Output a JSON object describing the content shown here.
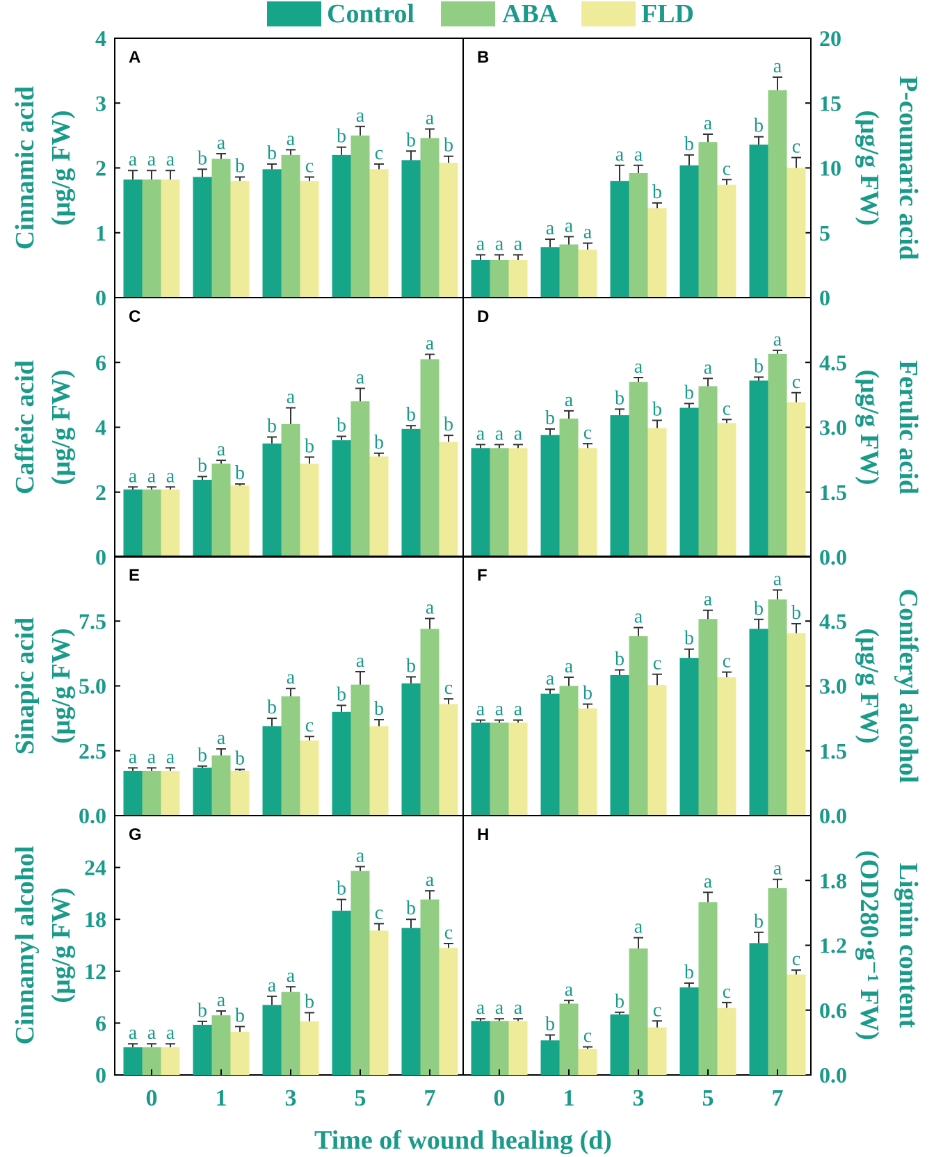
{
  "colors": {
    "control": "#17a589",
    "aba": "#92cd84",
    "fld": "#eeec9a",
    "axis_text": "#1a9a8a",
    "frame": "#000000"
  },
  "legend": {
    "items": [
      {
        "key": "control",
        "label": "Control"
      },
      {
        "key": "aba",
        "label": "ABA"
      },
      {
        "key": "fld",
        "label": "FLD"
      }
    ]
  },
  "x_axis_title": "Time of wound healing (d)",
  "chart_data": [
    {
      "panel": "A",
      "type": "bar",
      "y_axis_side": "left",
      "categories": [
        "0",
        "1",
        "3",
        "5",
        "7"
      ],
      "ylim": [
        0,
        4
      ],
      "yticks": [
        "0",
        "1",
        "2",
        "3",
        "4"
      ],
      "ylabel_line1": "Cinnamic acid",
      "ylabel_line2": "(μg/g FW)",
      "series": [
        {
          "name": "Control",
          "values": [
            1.82,
            1.86,
            1.98,
            2.2,
            2.12
          ],
          "errors": [
            0.14,
            0.12,
            0.08,
            0.12,
            0.14
          ],
          "letters": [
            "a",
            "b",
            "b",
            "b",
            "b"
          ]
        },
        {
          "name": "ABA",
          "values": [
            1.82,
            2.14,
            2.2,
            2.5,
            2.46
          ],
          "errors": [
            0.14,
            0.08,
            0.08,
            0.14,
            0.14
          ],
          "letters": [
            "a",
            "a",
            "a",
            "a",
            "a"
          ]
        },
        {
          "name": "FLD",
          "values": [
            1.82,
            1.8,
            1.8,
            1.98,
            2.08
          ],
          "errors": [
            0.14,
            0.06,
            0.06,
            0.08,
            0.1
          ],
          "letters": [
            "a",
            "b",
            "c",
            "c",
            "b"
          ]
        }
      ]
    },
    {
      "panel": "B",
      "type": "bar",
      "y_axis_side": "right",
      "categories": [
        "0",
        "1",
        "3",
        "5",
        "7"
      ],
      "ylim": [
        0,
        20
      ],
      "yticks": [
        "0",
        "5",
        "10",
        "15",
        "20"
      ],
      "ylabel_line1": "P-coumaric acid",
      "ylabel_line2": "(μg/g FW)",
      "series": [
        {
          "name": "Control",
          "values": [
            2.9,
            3.9,
            9.0,
            10.2,
            11.8
          ],
          "errors": [
            0.4,
            0.6,
            1.2,
            0.8,
            0.6
          ],
          "letters": [
            "a",
            "a",
            "a",
            "b",
            "b"
          ]
        },
        {
          "name": "ABA",
          "values": [
            2.9,
            4.1,
            9.6,
            12.0,
            16.0
          ],
          "errors": [
            0.4,
            0.6,
            0.6,
            0.6,
            1.0
          ],
          "letters": [
            "a",
            "a",
            "a",
            "a",
            "a"
          ]
        },
        {
          "name": "FLD",
          "values": [
            2.9,
            3.7,
            6.9,
            8.7,
            10.0
          ],
          "errors": [
            0.4,
            0.5,
            0.4,
            0.4,
            0.8
          ],
          "letters": [
            "a",
            "a",
            "b",
            "c",
            "c"
          ]
        }
      ]
    },
    {
      "panel": "C",
      "type": "bar",
      "y_axis_side": "left",
      "categories": [
        "0",
        "1",
        "3",
        "5",
        "7"
      ],
      "ylim": [
        0,
        8
      ],
      "yticks": [
        "0",
        "2",
        "4",
        "6"
      ],
      "ylabel_line1": "Caffeic acid",
      "ylabel_line2": "(μg/g FW)",
      "series": [
        {
          "name": "Control",
          "values": [
            2.08,
            2.38,
            3.5,
            3.6,
            3.95
          ],
          "errors": [
            0.08,
            0.1,
            0.2,
            0.12,
            0.1
          ],
          "letters": [
            "a",
            "b",
            "b",
            "b",
            "b"
          ]
        },
        {
          "name": "ABA",
          "values": [
            2.08,
            2.88,
            4.1,
            4.8,
            6.1
          ],
          "errors": [
            0.08,
            0.1,
            0.5,
            0.4,
            0.15
          ],
          "letters": [
            "a",
            "a",
            "a",
            "a",
            "a"
          ]
        },
        {
          "name": "FLD",
          "values": [
            2.08,
            2.2,
            2.88,
            3.1,
            3.55
          ],
          "errors": [
            0.08,
            0.05,
            0.2,
            0.1,
            0.2
          ],
          "letters": [
            "a",
            "b",
            "b",
            "b",
            "b"
          ]
        }
      ]
    },
    {
      "panel": "D",
      "type": "bar",
      "y_axis_side": "right",
      "categories": [
        "0",
        "1",
        "3",
        "5",
        "7"
      ],
      "ylim": [
        0,
        6
      ],
      "yticks": [
        "0.0",
        "1.5",
        "3.0",
        "4.5"
      ],
      "ylabel_line1": "Ferulic  acid",
      "ylabel_line2": "(μg/g FW)",
      "series": [
        {
          "name": "Control",
          "values": [
            2.52,
            2.82,
            3.28,
            3.45,
            4.08
          ],
          "errors": [
            0.08,
            0.14,
            0.14,
            0.1,
            0.08
          ],
          "letters": [
            "a",
            "b",
            "b",
            "b",
            "b"
          ]
        },
        {
          "name": "ABA",
          "values": [
            2.52,
            3.2,
            4.05,
            3.95,
            4.7
          ],
          "errors": [
            0.08,
            0.18,
            0.1,
            0.18,
            0.08
          ],
          "letters": [
            "a",
            "a",
            "a",
            "a",
            "a"
          ]
        },
        {
          "name": "FLD",
          "values": [
            2.52,
            2.52,
            2.98,
            3.1,
            3.58
          ],
          "errors": [
            0.08,
            0.1,
            0.18,
            0.08,
            0.22
          ],
          "letters": [
            "a",
            "c",
            "b",
            "c",
            "c"
          ]
        }
      ]
    },
    {
      "panel": "E",
      "type": "bar",
      "y_axis_side": "left",
      "categories": [
        "0",
        "1",
        "3",
        "5",
        "7"
      ],
      "ylim": [
        0,
        10
      ],
      "yticks": [
        "0.0",
        "2.5",
        "5.0",
        "7.5"
      ],
      "ylabel_line1": "Sinapic acid",
      "ylabel_line2": "(μg/g FW)",
      "series": [
        {
          "name": "Control",
          "values": [
            1.72,
            1.85,
            3.45,
            4.0,
            5.1
          ],
          "errors": [
            0.12,
            0.06,
            0.3,
            0.25,
            0.25
          ],
          "letters": [
            "a",
            "b",
            "b",
            "b",
            "b"
          ]
        },
        {
          "name": "ABA",
          "values": [
            1.72,
            2.32,
            4.6,
            5.05,
            7.2
          ],
          "errors": [
            0.12,
            0.25,
            0.3,
            0.5,
            0.4
          ],
          "letters": [
            "a",
            "a",
            "a",
            "a",
            "a"
          ]
        },
        {
          "name": "FLD",
          "values": [
            1.72,
            1.72,
            2.9,
            3.45,
            4.3
          ],
          "errors": [
            0.12,
            0.06,
            0.15,
            0.25,
            0.2
          ],
          "letters": [
            "a",
            "b",
            "c",
            "b",
            "c"
          ]
        }
      ]
    },
    {
      "panel": "F",
      "type": "bar",
      "y_axis_side": "right",
      "categories": [
        "0",
        "1",
        "3",
        "5",
        "7"
      ],
      "ylim": [
        0,
        6
      ],
      "yticks": [
        "0.0",
        "1.5",
        "3.0",
        "4.5"
      ],
      "ylabel_line1": "Coniferyl alcohol",
      "ylabel_line2": "(μg/g FW)",
      "series": [
        {
          "name": "Control",
          "values": [
            2.15,
            2.82,
            3.25,
            3.65,
            4.32
          ],
          "errors": [
            0.06,
            0.1,
            0.12,
            0.2,
            0.22
          ],
          "letters": [
            "a",
            "a",
            "b",
            "b",
            "b"
          ]
        },
        {
          "name": "ABA",
          "values": [
            2.15,
            3.0,
            4.15,
            4.55,
            5.0
          ],
          "errors": [
            0.06,
            0.2,
            0.2,
            0.2,
            0.22
          ],
          "letters": [
            "a",
            "a",
            "a",
            "a",
            "a"
          ]
        },
        {
          "name": "FLD",
          "values": [
            2.15,
            2.48,
            3.02,
            3.2,
            4.22
          ],
          "errors": [
            0.06,
            0.1,
            0.25,
            0.12,
            0.22
          ],
          "letters": [
            "a",
            "b",
            "c",
            "c",
            "b"
          ]
        }
      ]
    },
    {
      "panel": "G",
      "type": "bar",
      "y_axis_side": "left",
      "categories": [
        "0",
        "1",
        "3",
        "5",
        "7"
      ],
      "ylim": [
        0,
        30
      ],
      "yticks": [
        "0",
        "6",
        "12",
        "18",
        "24"
      ],
      "ylabel_line1": "Cinnamyl alcohol",
      "ylabel_line2": "(μg/g FW)",
      "series": [
        {
          "name": "Control",
          "values": [
            3.2,
            5.8,
            8.1,
            19.0,
            17.0
          ],
          "errors": [
            0.4,
            0.4,
            1.0,
            1.3,
            1.0
          ],
          "letters": [
            "a",
            "b",
            "a",
            "b",
            "b"
          ]
        },
        {
          "name": "ABA",
          "values": [
            3.2,
            6.9,
            9.6,
            23.6,
            20.3
          ],
          "errors": [
            0.4,
            0.5,
            0.6,
            0.5,
            1.0
          ],
          "letters": [
            "a",
            "a",
            "a",
            "a",
            "a"
          ]
        },
        {
          "name": "FLD",
          "values": [
            3.2,
            5.0,
            6.2,
            16.7,
            14.7
          ],
          "errors": [
            0.4,
            0.6,
            1.0,
            0.8,
            0.5
          ],
          "letters": [
            "a",
            "b",
            "b",
            "c",
            "c"
          ]
        }
      ]
    },
    {
      "panel": "H",
      "type": "bar",
      "y_axis_side": "right",
      "categories": [
        "0",
        "1",
        "3",
        "5",
        "7"
      ],
      "ylim": [
        0,
        2.4
      ],
      "yticks": [
        "0.0",
        "0.6",
        "1.2",
        "1.8"
      ],
      "ylabel_line1": "Lignin content",
      "ylabel_line2": "(OD280·g⁻¹ FW)",
      "series": [
        {
          "name": "Control",
          "values": [
            0.5,
            0.32,
            0.56,
            0.81,
            1.22
          ],
          "errors": [
            0.02,
            0.05,
            0.02,
            0.04,
            0.1
          ],
          "letters": [
            "a",
            "b",
            "b",
            "b",
            "b"
          ]
        },
        {
          "name": "ABA",
          "values": [
            0.5,
            0.66,
            1.17,
            1.6,
            1.73
          ],
          "errors": [
            0.02,
            0.03,
            0.1,
            0.09,
            0.08
          ],
          "letters": [
            "a",
            "a",
            "a",
            "a",
            "a"
          ]
        },
        {
          "name": "FLD",
          "values": [
            0.5,
            0.24,
            0.44,
            0.62,
            0.93
          ],
          "errors": [
            0.02,
            0.02,
            0.06,
            0.05,
            0.04
          ],
          "letters": [
            "a",
            "c",
            "c",
            "c",
            "c"
          ]
        }
      ]
    }
  ]
}
